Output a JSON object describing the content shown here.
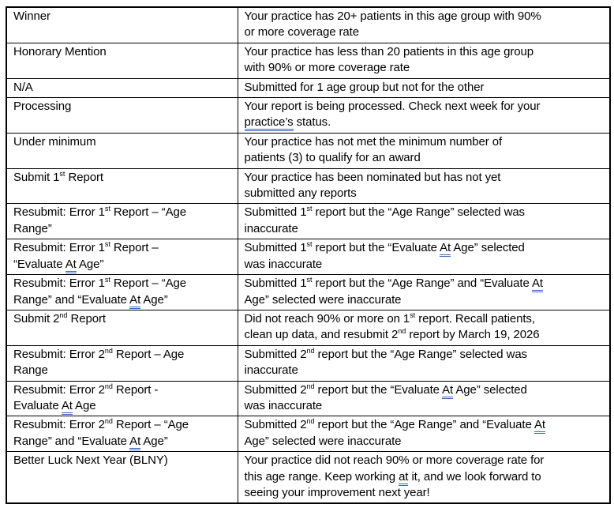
{
  "document": {
    "background": "#ffffff",
    "text_color": "#000000",
    "border_color": "#000000",
    "grammar_underline_color": "#3a64c8"
  },
  "table": {
    "columns": [
      "status",
      "description"
    ],
    "rows": [
      {
        "status": [
          {
            "t": "Winner"
          }
        ],
        "description": [
          {
            "t": "Your practice has 20+ patients in this age group with 90%\nor more coverage rate"
          }
        ]
      },
      {
        "status": [
          {
            "t": "Honorary Mention"
          }
        ],
        "description": [
          {
            "t": "Your practice has less than 20 patients in this age group\nwith 90% or more coverage rate"
          }
        ]
      },
      {
        "status": [
          {
            "t": "N/A"
          }
        ],
        "description": [
          {
            "t": "Submitted for 1 age group but not for the other"
          }
        ]
      },
      {
        "status": [
          {
            "t": "Processing"
          }
        ],
        "description": [
          {
            "t": "Your report is being processed. Check next week for your\n"
          },
          {
            "t": "practice’s",
            "gu": true
          },
          {
            "t": " status."
          }
        ]
      },
      {
        "status": [
          {
            "t": "Under minimum"
          }
        ],
        "description": [
          {
            "t": "Your practice has not met the minimum number of\npatients (3) to qualify for an award"
          }
        ]
      },
      {
        "status": [
          {
            "t": "Submit 1"
          },
          {
            "t": "st",
            "sup": true
          },
          {
            "t": " Report"
          }
        ],
        "description": [
          {
            "t": "Your practice has been nominated but has not yet\nsubmitted any reports"
          }
        ]
      },
      {
        "status": [
          {
            "t": "Resubmit: Error 1"
          },
          {
            "t": "st",
            "sup": true
          },
          {
            "t": " Report – “Age\nRange”"
          }
        ],
        "description": [
          {
            "t": "Submitted 1"
          },
          {
            "t": "st",
            "sup": true
          },
          {
            "t": " report but the “Age Range” selected was\ninaccurate"
          }
        ]
      },
      {
        "status": [
          {
            "t": "Resubmit: Error 1"
          },
          {
            "t": "st",
            "sup": true
          },
          {
            "t": " Report –\n“Evaluate "
          },
          {
            "t": "At",
            "gu": true
          },
          {
            "t": " Age”"
          }
        ],
        "description": [
          {
            "t": "Submitted 1"
          },
          {
            "t": "st",
            "sup": true
          },
          {
            "t": " report but the “Evaluate "
          },
          {
            "t": "At",
            "gu": true
          },
          {
            "t": " Age” selected\nwas inaccurate"
          }
        ]
      },
      {
        "status": [
          {
            "t": "Resubmit: Error 1"
          },
          {
            "t": "st",
            "sup": true
          },
          {
            "t": " Report – “Age\nRange” and “Evaluate "
          },
          {
            "t": "At",
            "gu": true
          },
          {
            "t": " Age”"
          }
        ],
        "description": [
          {
            "t": "Submitted 1"
          },
          {
            "t": "st",
            "sup": true
          },
          {
            "t": " report but the “Age Range” and “Evaluate "
          },
          {
            "t": "At",
            "gu": true
          },
          {
            "t": "\nAge” selected were inaccurate"
          }
        ]
      },
      {
        "status": [
          {
            "t": "Submit 2"
          },
          {
            "t": "nd",
            "sup": true
          },
          {
            "t": " Report"
          }
        ],
        "description": [
          {
            "t": "Did not reach 90% or more on 1"
          },
          {
            "t": "st",
            "sup": true
          },
          {
            "t": " report. Recall patients,\nclean up data, and resubmit 2"
          },
          {
            "t": "nd",
            "sup": true
          },
          {
            "t": " report by March 19, 2026"
          }
        ]
      },
      {
        "status": [
          {
            "t": "Resubmit: Error 2"
          },
          {
            "t": "nd",
            "sup": true
          },
          {
            "t": " Report – Age\nRange"
          }
        ],
        "description": [
          {
            "t": "Submitted 2"
          },
          {
            "t": "nd",
            "sup": true
          },
          {
            "t": " report but the “Age Range” selected was\ninaccurate"
          }
        ]
      },
      {
        "status": [
          {
            "t": "Resubmit: Error 2"
          },
          {
            "t": "nd",
            "sup": true
          },
          {
            "t": " Report -\nEvaluate "
          },
          {
            "t": "At",
            "gu": true
          },
          {
            "t": " Age"
          }
        ],
        "description": [
          {
            "t": "Submitted 2"
          },
          {
            "t": "nd",
            "sup": true
          },
          {
            "t": " report but the “Evaluate "
          },
          {
            "t": "At",
            "gu": true
          },
          {
            "t": " Age” selected\nwas inaccurate"
          }
        ]
      },
      {
        "status": [
          {
            "t": "Resubmit: Error 2"
          },
          {
            "t": "nd",
            "sup": true
          },
          {
            "t": " Report – “Age\nRange” and “Evaluate "
          },
          {
            "t": "At",
            "gu": true
          },
          {
            "t": " Age”"
          }
        ],
        "description": [
          {
            "t": "Submitted 2"
          },
          {
            "t": "nd",
            "sup": true
          },
          {
            "t": " report but the “Age Range” and “Evaluate "
          },
          {
            "t": "At",
            "gu": true
          },
          {
            "t": "\nAge” selected were inaccurate"
          }
        ]
      },
      {
        "status": [
          {
            "t": "Better Luck Next Year (BLNY)"
          }
        ],
        "description": [
          {
            "t": "Your practice did not reach 90% or more coverage rate for\nthis age range. Keep working "
          },
          {
            "t": "at",
            "gu": true
          },
          {
            "t": " it, and we look forward to\nseeing your improvement next year!"
          }
        ]
      }
    ]
  }
}
